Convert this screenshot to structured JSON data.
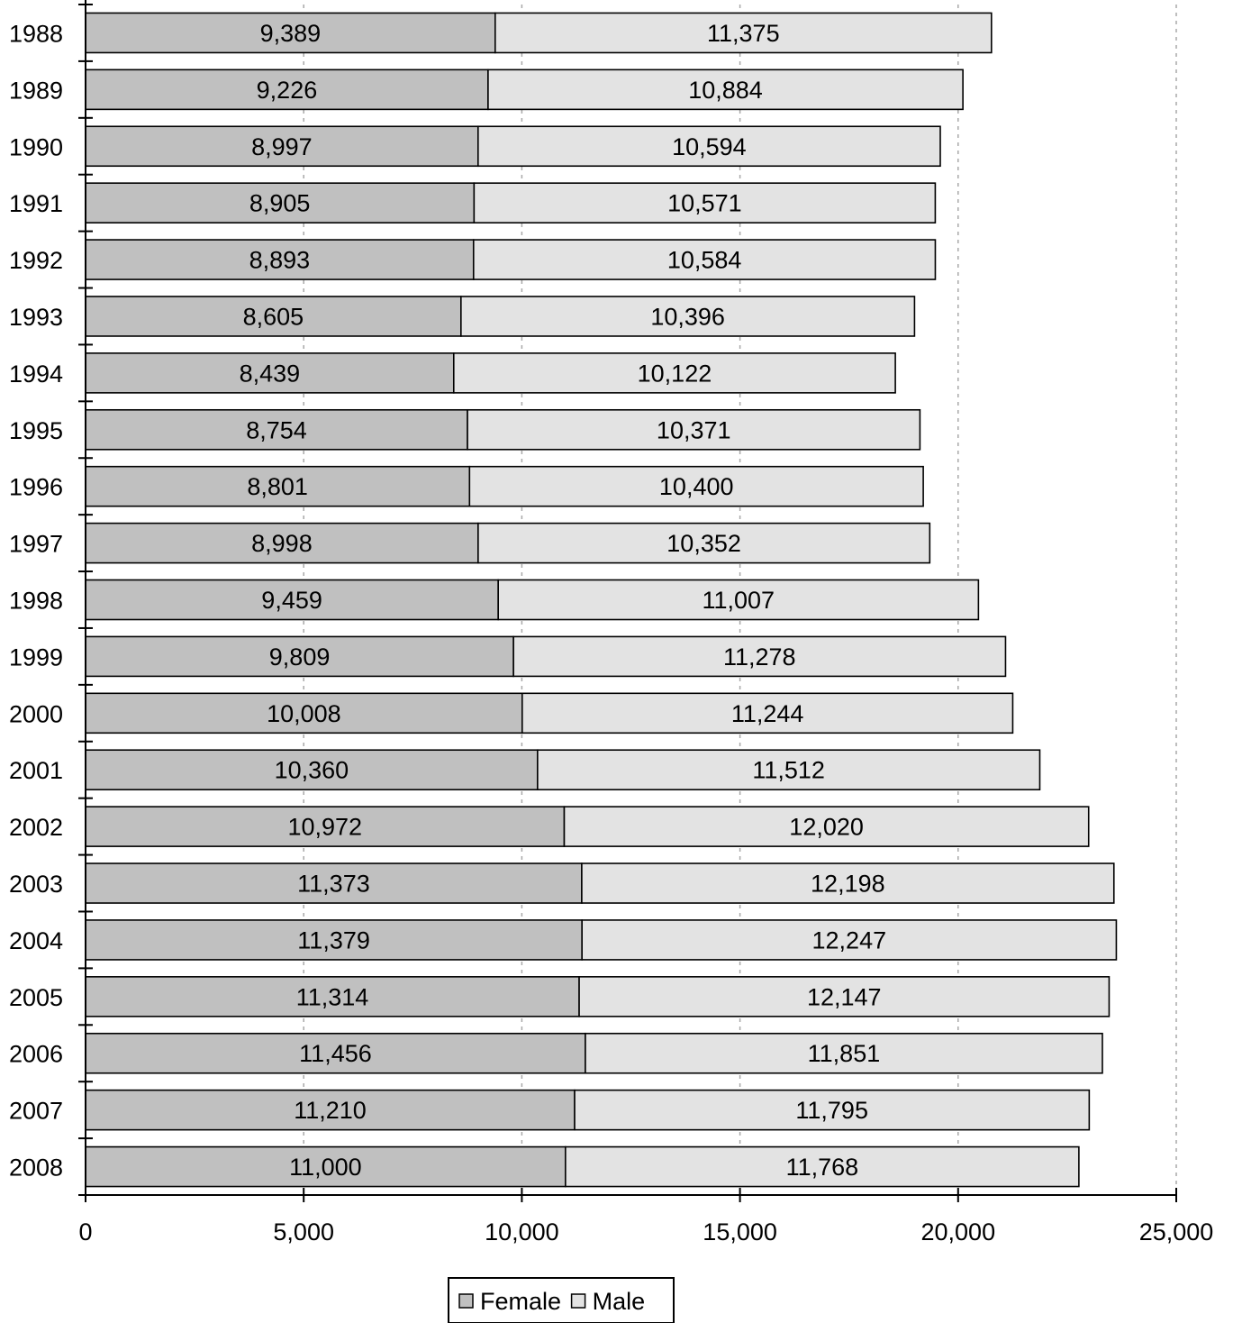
{
  "chart_data": {
    "type": "bar",
    "orientation": "horizontal",
    "stacked": true,
    "categories": [
      "1988",
      "1989",
      "1990",
      "1991",
      "1992",
      "1993",
      "1994",
      "1995",
      "1996",
      "1997",
      "1998",
      "1999",
      "2000",
      "2001",
      "2002",
      "2003",
      "2004",
      "2005",
      "2006",
      "2007",
      "2008"
    ],
    "series": [
      {
        "name": "Female",
        "color": "#c0c0c0",
        "values": [
          9389,
          9226,
          8997,
          8905,
          8893,
          8605,
          8439,
          8754,
          8801,
          8998,
          9459,
          9809,
          10008,
          10360,
          10972,
          11373,
          11379,
          11314,
          11456,
          11210,
          11000
        ],
        "labels": [
          "9,389",
          "9,226",
          "8,997",
          "8,905",
          "8,893",
          "8,605",
          "8,439",
          "8,754",
          "8,801",
          "8,998",
          "9,459",
          "9,809",
          "10,008",
          "10,360",
          "10,972",
          "11,373",
          "11,379",
          "11,314",
          "11,456",
          "11,210",
          "11,000"
        ]
      },
      {
        "name": "Male",
        "color": "#e3e3e3",
        "values": [
          11375,
          10884,
          10594,
          10571,
          10584,
          10396,
          10122,
          10371,
          10400,
          10352,
          11007,
          11278,
          11244,
          11512,
          12020,
          12198,
          12247,
          12147,
          11851,
          11795,
          11768
        ],
        "labels": [
          "11,375",
          "10,884",
          "10,594",
          "10,571",
          "10,584",
          "10,396",
          "10,122",
          "10,371",
          "10,400",
          "10,352",
          "11,007",
          "11,278",
          "11,244",
          "11,512",
          "12,020",
          "12,198",
          "12,247",
          "12,147",
          "11,851",
          "11,795",
          "11,768"
        ]
      }
    ],
    "xlim": [
      0,
      25000
    ],
    "x_ticks": [
      0,
      5000,
      10000,
      15000,
      20000,
      25000
    ],
    "x_tick_labels": [
      "0",
      "5,000",
      "10,000",
      "15,000",
      "20,000",
      "25,000"
    ],
    "grid": "vertical dashed",
    "legend_position": "bottom",
    "title": "",
    "xlabel": "",
    "ylabel": ""
  }
}
